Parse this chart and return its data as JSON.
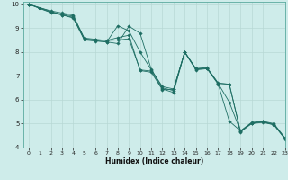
{
  "title": "",
  "xlabel": "Humidex (Indice chaleur)",
  "xlim": [
    -0.5,
    23
  ],
  "ylim": [
    4,
    10.1
  ],
  "xticks": [
    0,
    1,
    2,
    3,
    4,
    5,
    6,
    7,
    8,
    9,
    10,
    11,
    12,
    13,
    14,
    15,
    16,
    17,
    18,
    19,
    20,
    21,
    22,
    23
  ],
  "yticks": [
    4,
    5,
    6,
    7,
    8,
    9,
    10
  ],
  "bg_color": "#ceecea",
  "line_color": "#1e6e63",
  "grid_color": "#b8d8d5",
  "lines": [
    {
      "x": [
        0,
        1,
        2,
        3,
        4,
        5,
        6,
        7,
        8,
        9,
        10,
        11,
        12,
        13,
        14,
        15,
        16,
        17,
        18,
        19,
        20,
        21,
        22,
        23
      ],
      "y": [
        10.0,
        9.85,
        9.72,
        9.63,
        9.55,
        8.55,
        8.5,
        8.48,
        8.5,
        8.55,
        7.25,
        7.2,
        6.45,
        6.3,
        8.0,
        7.25,
        7.3,
        6.65,
        5.1,
        4.7,
        5.05,
        5.1,
        5.0,
        4.4
      ]
    },
    {
      "x": [
        0,
        1,
        2,
        3,
        4,
        5,
        6,
        7,
        8,
        9,
        10,
        11,
        12,
        13,
        14,
        15,
        16,
        17,
        18,
        19,
        20,
        21,
        22,
        23
      ],
      "y": [
        10.0,
        9.83,
        9.67,
        9.58,
        9.5,
        8.58,
        8.53,
        8.48,
        8.6,
        8.7,
        7.22,
        7.15,
        6.42,
        6.43,
        7.98,
        7.28,
        7.32,
        6.68,
        5.9,
        4.68,
        5.02,
        5.08,
        4.97,
        4.37
      ]
    },
    {
      "x": [
        0,
        1,
        2,
        3,
        4,
        5,
        6,
        7,
        8,
        9,
        10,
        11,
        12,
        13,
        14,
        15,
        16,
        17,
        18,
        19,
        20,
        21,
        22,
        23
      ],
      "y": [
        10.0,
        9.85,
        9.7,
        9.55,
        9.42,
        8.52,
        8.47,
        8.42,
        9.1,
        8.88,
        8.0,
        7.25,
        6.55,
        6.45,
        8.0,
        7.3,
        7.32,
        6.68,
        6.65,
        4.68,
        5.02,
        5.08,
        4.95,
        4.38
      ]
    },
    {
      "x": [
        0,
        1,
        2,
        3,
        4,
        5,
        6,
        7,
        8,
        9,
        10,
        11,
        12,
        13,
        14,
        15,
        16,
        17,
        18,
        19,
        20,
        21,
        22,
        23
      ],
      "y": [
        10.0,
        9.82,
        9.65,
        9.55,
        9.45,
        8.5,
        8.46,
        8.42,
        8.35,
        9.08,
        8.78,
        7.28,
        6.5,
        6.38,
        8.0,
        7.3,
        7.35,
        6.7,
        6.65,
        4.65,
        5.0,
        5.05,
        4.95,
        4.35
      ]
    }
  ]
}
